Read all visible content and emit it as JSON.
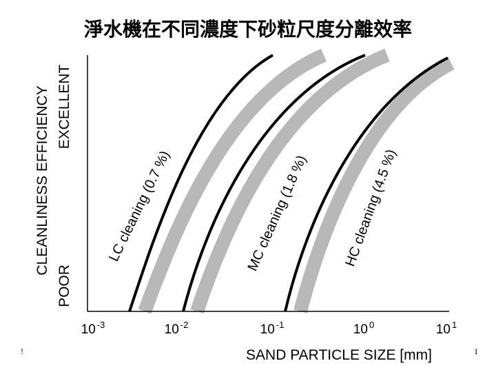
{
  "title": "淨水機在不同濃度下砂粒尺度分離效率",
  "y_axis": {
    "title": "CLEANLINESS EFFICIENCY",
    "high": "EXCELLENT",
    "low": "POOR"
  },
  "x_axis": {
    "title": "SAND PARTICLE SIZE [mm]",
    "ticks": [
      {
        "base": "10",
        "exp": "-3"
      },
      {
        "base": "10",
        "exp": "-2"
      },
      {
        "base": "10",
        "exp": "-1"
      },
      {
        "base": "10",
        "exp": "0"
      },
      {
        "base": "10",
        "exp": "1"
      }
    ]
  },
  "curves": [
    "LC cleaning (0.7 %)",
    "MC cleaning (1.8 %)",
    "HC cleaning (4.5 %)"
  ],
  "footer": {
    "left": "!",
    "page": "1"
  }
}
